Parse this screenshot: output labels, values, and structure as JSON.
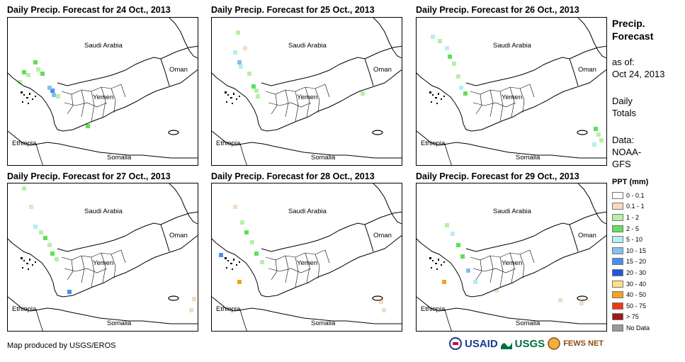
{
  "panels": [
    {
      "title": "Daily Precip. Forecast for 24 Oct., 2013"
    },
    {
      "title": "Daily Precip. Forecast for 25 Oct., 2013"
    },
    {
      "title": "Daily Precip. Forecast for 26 Oct., 2013"
    },
    {
      "title": "Daily Precip. Forecast for 27 Oct., 2013"
    },
    {
      "title": "Daily Precip. Forecast for 28 Oct., 2013"
    },
    {
      "title": "Daily Precip. Forecast for 29 Oct., 2013"
    }
  ],
  "map_labels": {
    "saudi": "Saudi Arabia",
    "oman": "Oman",
    "yemen": "Yemen",
    "ethiopia": "Ethiopia",
    "somalia": "Somalia"
  },
  "sidebar": {
    "title_line1": "Precip.",
    "title_line2": "Forecast",
    "asof_line1": "as of:",
    "asof_line2": "Oct 24, 2013",
    "daily_line1": "Daily",
    "daily_line2": "Totals",
    "data_line1": "Data:",
    "data_line2": "NOAA-",
    "data_line3": "GFS"
  },
  "legend": {
    "title": "PPT (mm)",
    "items": [
      {
        "label": "0 - 0.1",
        "color": "#ffffff"
      },
      {
        "label": "0.1 - 1",
        "color": "#f5dcc0"
      },
      {
        "label": "1 - 2",
        "color": "#b6f0a8"
      },
      {
        "label": "2 - 5",
        "color": "#5fe05a"
      },
      {
        "label": "5 - 10",
        "color": "#b4eef5"
      },
      {
        "label": "10 - 15",
        "color": "#82c0f0"
      },
      {
        "label": "15 - 20",
        "color": "#4a8ff0"
      },
      {
        "label": "20 - 30",
        "color": "#1f56e0"
      },
      {
        "label": "30 - 40",
        "color": "#ffe08a"
      },
      {
        "label": "40 - 50",
        "color": "#f5a020"
      },
      {
        "label": "50 - 75",
        "color": "#f03810"
      },
      {
        "label": "> 75",
        "color": "#a01818"
      },
      {
        "label": "No Data",
        "color": "#999999"
      }
    ]
  },
  "footer": {
    "credit": "Map produced by USGS/EROS",
    "logo_usaid": "USAID",
    "logo_usgs": "USGS",
    "logo_fews": "FEWS NET"
  }
}
